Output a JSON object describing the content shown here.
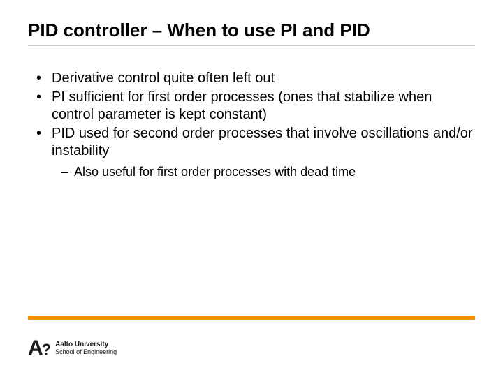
{
  "colors": {
    "accent": "#f39200",
    "text": "#000000",
    "rule": "#c8c8c8",
    "background": "#ffffff",
    "logo": "#1a1a1a"
  },
  "slide": {
    "title": "PID controller – When to use PI and PID",
    "bullets": [
      {
        "text": "Derivative control quite often left out"
      },
      {
        "text": "PI sufficient for first order processes (ones that stabilize when control parameter is kept constant)"
      },
      {
        "text": "PID used for second order processes that involve oscillations and/or instability",
        "sub": [
          {
            "text": "Also useful for first order processes with dead time"
          }
        ]
      }
    ]
  },
  "footer": {
    "logo_mark": "A?",
    "logo_line1": "Aalto University",
    "logo_line2": "School of Engineering"
  }
}
